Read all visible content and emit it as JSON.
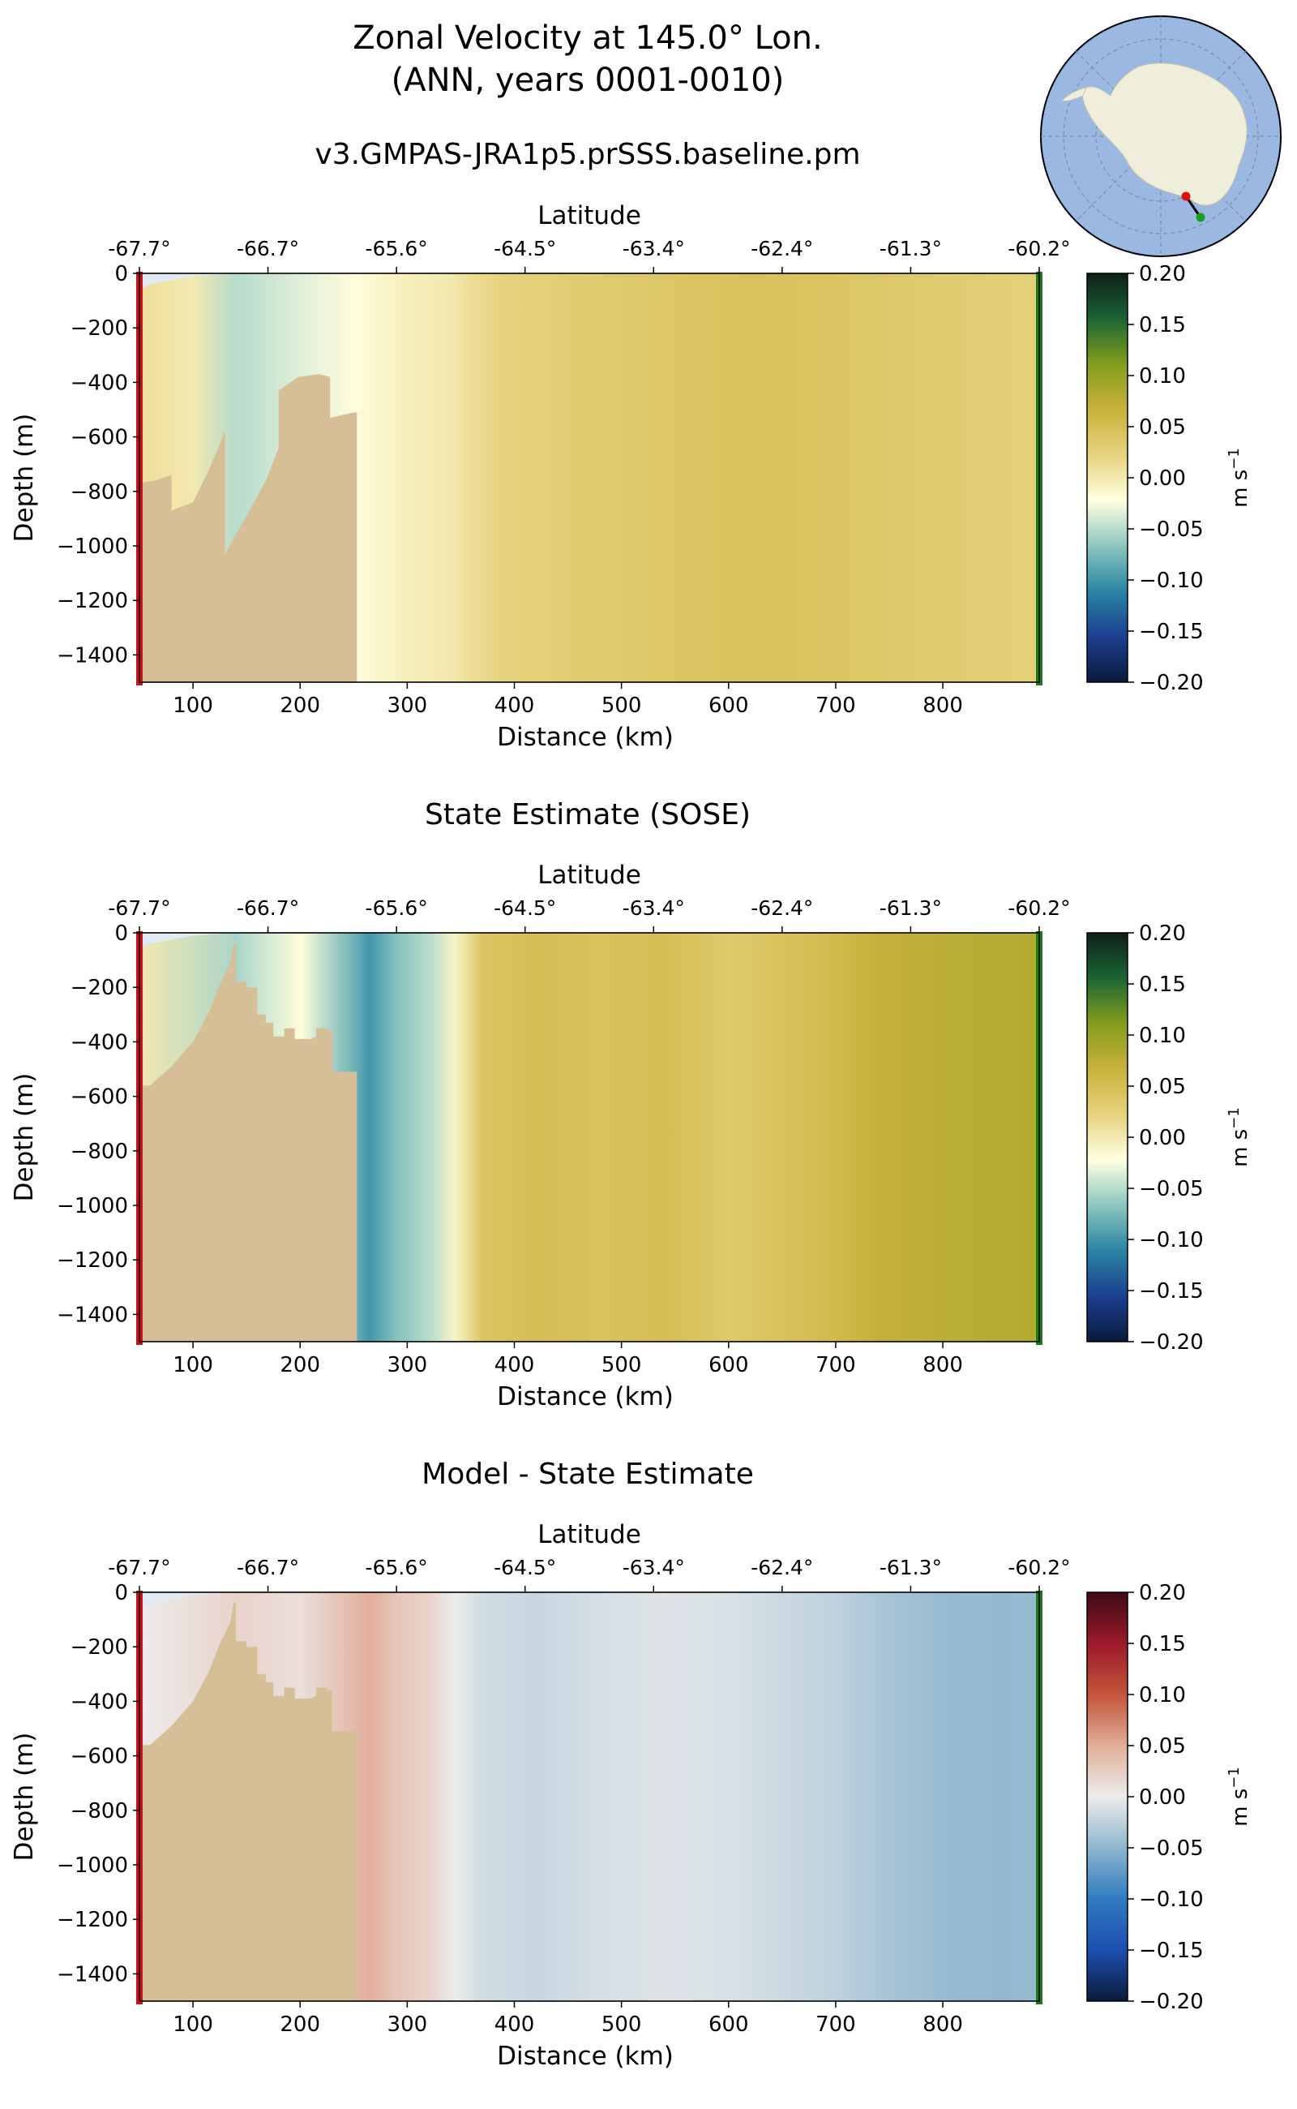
{
  "figure": {
    "title_line1": "Zonal Velocity at 145.0° Lon.",
    "title_line2": "(ANN, years 0001-0010)"
  },
  "colors": {
    "land": "#d6bf96",
    "ice_shelf_cavity": "#e1e9f5",
    "left_marker": "#cc1111",
    "right_marker": "#1a7a1a",
    "ocean_map": "#9bb8e2",
    "antarctica_map": "#efeedd"
  },
  "colormaps": {
    "velocity": [
      "#0b1a3c",
      "#1b3f90",
      "#2a84a4",
      "#8cc6c0",
      "#ffffe1",
      "#e7d27f",
      "#c9b23a",
      "#849d1d",
      "#1b6535",
      "#0e1f18"
    ],
    "difference": [
      "#0b1a3c",
      "#1d4fb0",
      "#2f7bbf",
      "#8fb6ce",
      "#ececec",
      "#e1ad98",
      "#c3543a",
      "#9c1a2a",
      "#3f0a14"
    ]
  },
  "panels": [
    {
      "title": "v3.GMPAS-JRA1p5.prSSS.baseline.pm",
      "top_axis_label": "Latitude",
      "top_tick_labels": [
        "-67.7°",
        "-66.7°",
        "-65.6°",
        "-64.5°",
        "-63.4°",
        "-62.4°",
        "-61.3°",
        "-60.2°"
      ],
      "xlabel": "Distance (km)",
      "ylabel": "Depth (m)",
      "x_ticks": [
        100,
        200,
        300,
        400,
        500,
        600,
        700,
        800
      ],
      "y_ticks": [
        0,
        -200,
        -400,
        -600,
        -800,
        -1000,
        -1200,
        -1400
      ],
      "colorbar_ticks": [
        "0.20",
        "0.15",
        "0.10",
        "0.05",
        "0.00",
        "−0.05",
        "−0.10",
        "−0.15",
        "−0.20"
      ],
      "colorbar_label": "m s",
      "colorbar_label_sup": "−1",
      "colormap": "velocity"
    },
    {
      "title": "State Estimate (SOSE)",
      "top_axis_label": "Latitude",
      "top_tick_labels": [
        "-67.7°",
        "-66.7°",
        "-65.6°",
        "-64.5°",
        "-63.4°",
        "-62.4°",
        "-61.3°",
        "-60.2°"
      ],
      "xlabel": "Distance (km)",
      "ylabel": "Depth (m)",
      "x_ticks": [
        100,
        200,
        300,
        400,
        500,
        600,
        700,
        800
      ],
      "y_ticks": [
        0,
        -200,
        -400,
        -600,
        -800,
        -1000,
        -1200,
        -1400
      ],
      "colorbar_ticks": [
        "0.20",
        "0.15",
        "0.10",
        "0.05",
        "0.00",
        "−0.05",
        "−0.10",
        "−0.15",
        "−0.20"
      ],
      "colorbar_label": "m s",
      "colorbar_label_sup": "−1",
      "colormap": "velocity"
    },
    {
      "title": "Model - State Estimate",
      "top_axis_label": "Latitude",
      "top_tick_labels": [
        "-67.7°",
        "-66.7°",
        "-65.6°",
        "-64.5°",
        "-63.4°",
        "-62.4°",
        "-61.3°",
        "-60.2°"
      ],
      "xlabel": "Distance (km)",
      "ylabel": "Depth (m)",
      "x_ticks": [
        100,
        200,
        300,
        400,
        500,
        600,
        700,
        800
      ],
      "y_ticks": [
        0,
        -200,
        -400,
        -600,
        -800,
        -1000,
        -1200,
        -1400
      ],
      "colorbar_ticks": [
        "0.20",
        "0.15",
        "0.10",
        "0.05",
        "0.00",
        "−0.05",
        "−0.10",
        "−0.15",
        "−0.20"
      ],
      "colorbar_label": "m s",
      "colorbar_label_sup": "−1",
      "colormap": "difference"
    }
  ],
  "chart_data": [
    {
      "type": "heatmap",
      "title": "v3.GMPAS-JRA1p5.prSSS.baseline.pm",
      "xlabel": "Distance (km)",
      "ylabel": "Depth (m)",
      "xlim": [
        50,
        890
      ],
      "ylim": [
        -1500,
        0
      ],
      "clim": [
        -0.2,
        0.2
      ],
      "units": "m s−1",
      "x_profile_km": [
        50,
        100,
        140,
        200,
        250,
        300,
        340,
        360,
        390,
        450,
        500,
        560,
        620,
        680,
        760,
        820,
        880
      ],
      "velocity_profile": [
        0.01,
        0.0,
        -0.05,
        -0.035,
        -0.02,
        -0.005,
        0.0,
        0.012,
        0.022,
        0.03,
        0.034,
        0.04,
        0.044,
        0.042,
        0.035,
        0.03,
        0.026
      ]
    },
    {
      "type": "heatmap",
      "title": "State Estimate (SOSE)",
      "xlabel": "Distance (km)",
      "ylabel": "Depth (m)",
      "xlim": [
        50,
        890
      ],
      "ylim": [
        -1500,
        0
      ],
      "clim": [
        -0.2,
        0.2
      ],
      "units": "m s−1",
      "x_profile_km": [
        50,
        140,
        200,
        250,
        265,
        290,
        320,
        345,
        370,
        420,
        480,
        540,
        600,
        650,
        700,
        740,
        800,
        860,
        880
      ],
      "velocity_profile": [
        0.0,
        -0.055,
        -0.02,
        -0.08,
        -0.1,
        -0.07,
        -0.05,
        -0.01,
        0.04,
        0.05,
        0.045,
        0.05,
        0.035,
        0.045,
        0.055,
        0.07,
        0.075,
        0.08,
        0.082
      ]
    },
    {
      "type": "heatmap",
      "title": "Model - State Estimate",
      "xlabel": "Distance (km)",
      "ylabel": "Depth (m)",
      "xlim": [
        50,
        890
      ],
      "ylim": [
        -1500,
        0
      ],
      "clim": [
        -0.2,
        0.2
      ],
      "units": "m s−1",
      "x_profile_km": [
        50,
        140,
        200,
        250,
        265,
        290,
        320,
        345,
        370,
        420,
        480,
        540,
        600,
        650,
        700,
        740,
        800,
        860,
        880
      ],
      "velocity_profile": [
        0.0,
        0.02,
        0.01,
        0.04,
        0.05,
        0.03,
        0.02,
        0.0,
        -0.015,
        -0.02,
        -0.012,
        -0.008,
        -0.01,
        -0.018,
        -0.025,
        -0.035,
        -0.045,
        -0.048,
        -0.045
      ]
    }
  ]
}
